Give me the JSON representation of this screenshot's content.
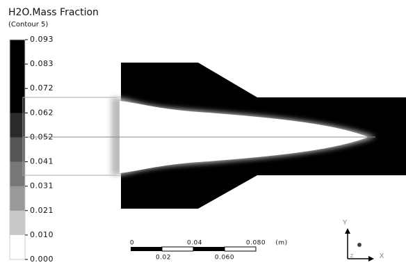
{
  "legend": {
    "title": "H2O.Mass Fraction",
    "subtitle": "(Contour 5)",
    "labels": [
      "0.093",
      "0.083",
      "0.072",
      "0.062",
      "0.052",
      "0.041",
      "0.031",
      "0.021",
      "0.010",
      "0.000"
    ]
  },
  "scale_bar": {
    "top_labels": [
      "0",
      "0.04",
      "0.080"
    ],
    "unit": "(m)",
    "bottom_labels": [
      "0.02",
      "0.060"
    ]
  },
  "axes": {
    "y": "Y",
    "x": "X",
    "z": "Z"
  }
}
